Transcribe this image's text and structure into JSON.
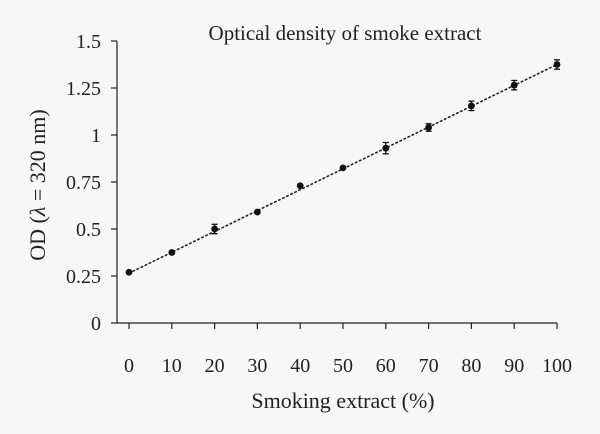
{
  "chart_data": {
    "type": "scatter",
    "title": "Optical density of smoke extract",
    "xlabel": "Smoking extract (%)",
    "ylabel_prefix": "OD (",
    "ylabel_lambda": "λ",
    "ylabel_suffix": " = 320 nm)",
    "xlim": [
      0,
      100
    ],
    "ylim": [
      0,
      1.5
    ],
    "x_ticks": [
      0,
      10,
      20,
      30,
      40,
      50,
      60,
      70,
      80,
      90,
      100
    ],
    "x_tick_labels": [
      "0",
      "10",
      "20",
      "30",
      "40",
      "50",
      "60",
      "70",
      "80",
      "90",
      "100"
    ],
    "y_ticks": [
      0,
      0.25,
      0.5,
      0.75,
      1,
      1.25,
      1.5
    ],
    "y_tick_labels": [
      "0",
      "0.25",
      "0.5",
      "0.75",
      "1",
      "1.25",
      "1.5"
    ],
    "grid": false,
    "series": [
      {
        "x": [
          0,
          10,
          20,
          30,
          40,
          50,
          60,
          70,
          80,
          90,
          100
        ],
        "y": [
          0.27,
          0.375,
          0.5,
          0.59,
          0.73,
          0.825,
          0.93,
          1.04,
          1.155,
          1.265,
          1.375
        ],
        "error": [
          0.0,
          0.0,
          0.025,
          0.0,
          0.0,
          0.0,
          0.03,
          0.02,
          0.025,
          0.025,
          0.025
        ]
      }
    ],
    "trendline": {
      "style": "dotted",
      "x": [
        0,
        100
      ],
      "y": [
        0.265,
        1.375
      ]
    }
  }
}
